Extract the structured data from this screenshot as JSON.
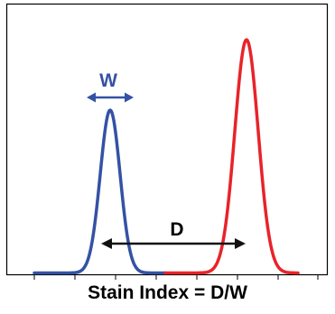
{
  "diagram": {
    "width_label": "W",
    "distance_label": "D",
    "caption": "Stain Index = D/W"
  },
  "colors": {
    "negative_peak": "#3452a4",
    "positive_peak": "#e8232a",
    "arrow_w": "#3452a4",
    "arrow_d": "#111111",
    "frame": "#000000"
  }
}
